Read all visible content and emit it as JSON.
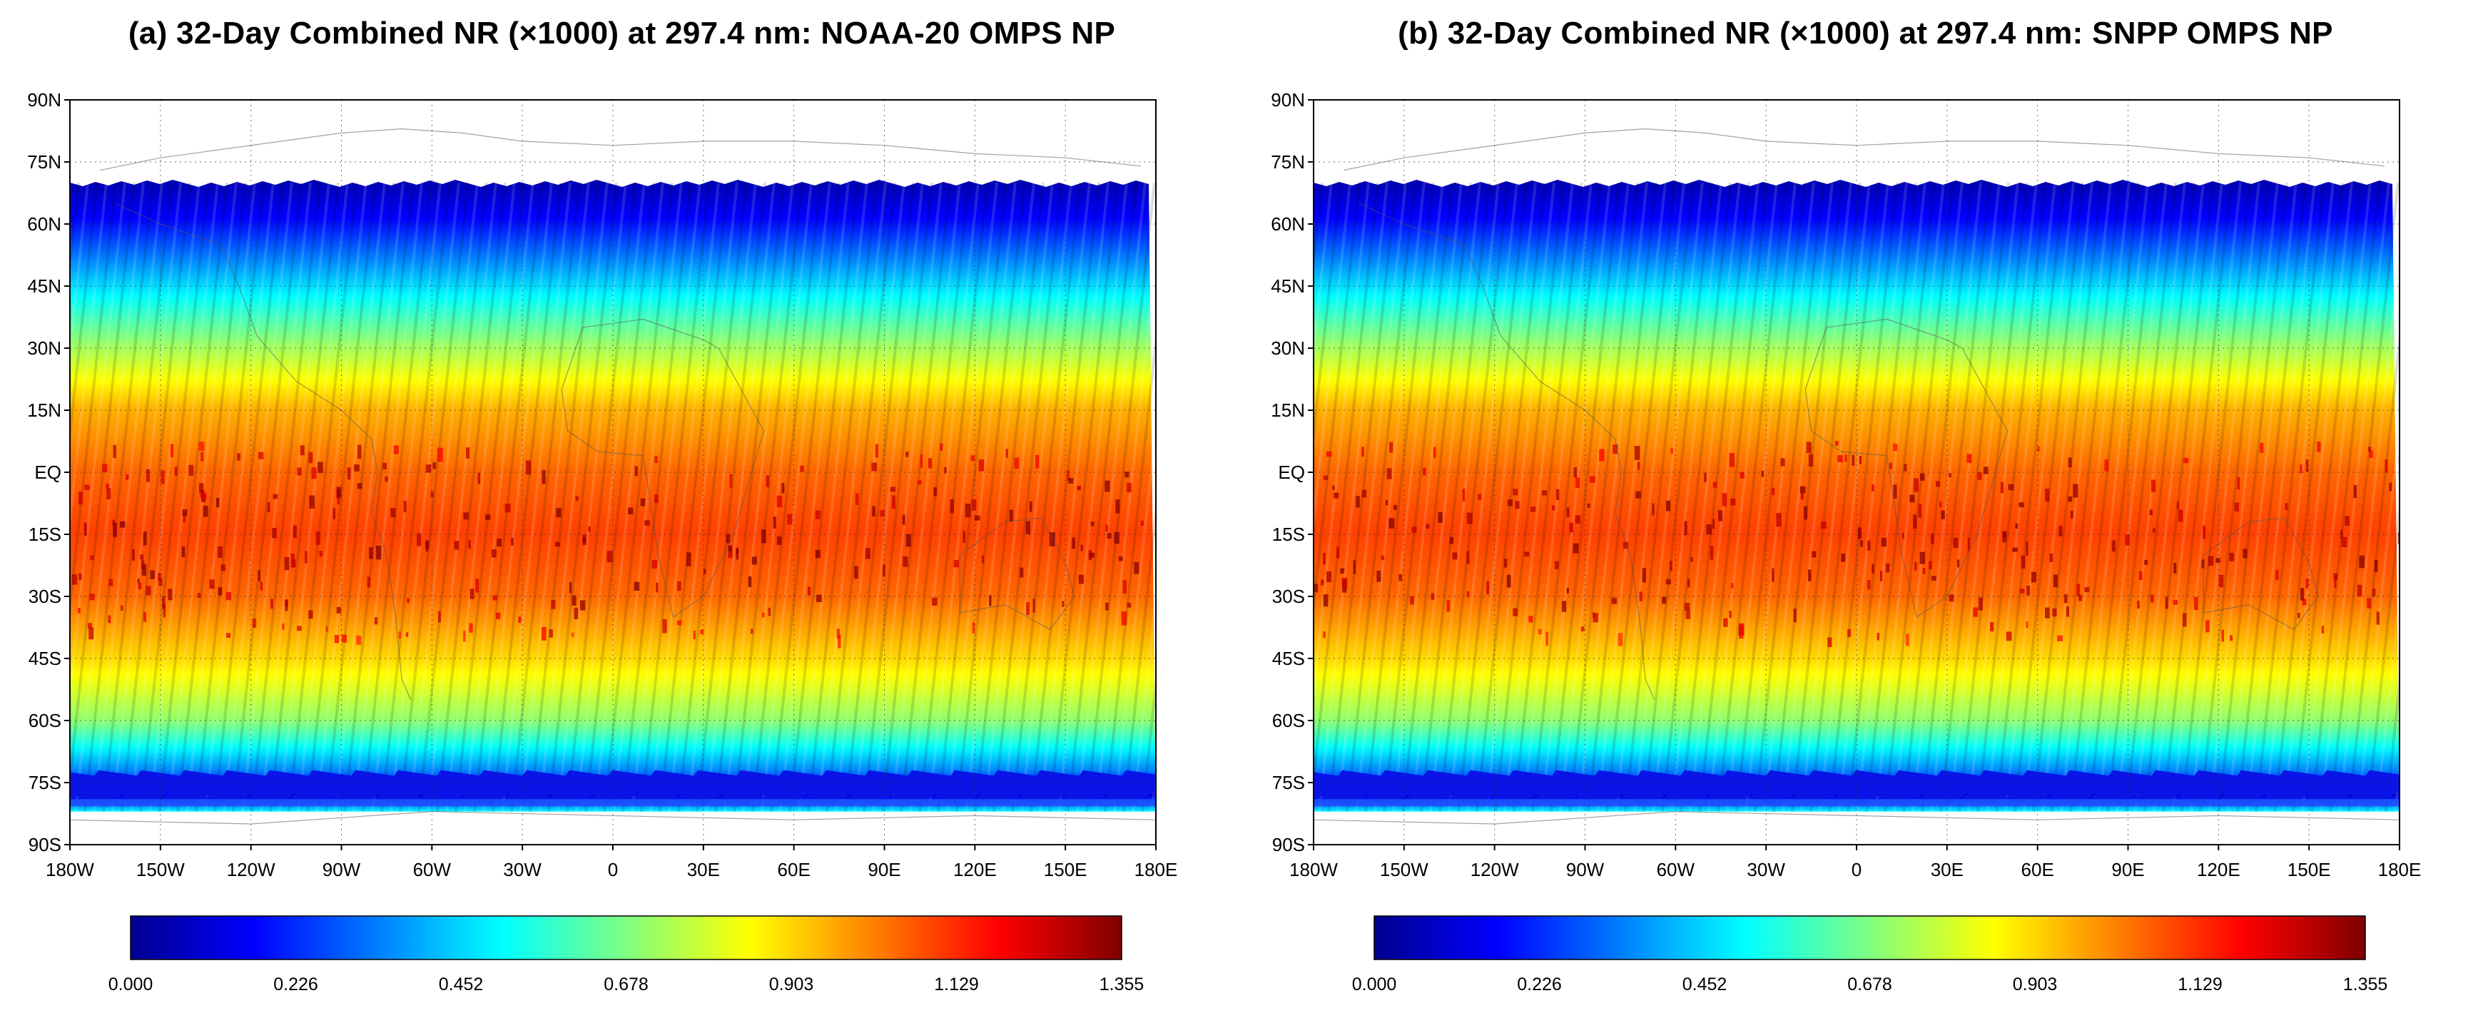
{
  "panels": [
    {
      "id": "a",
      "title": "(a) 32-Day Combined NR (×1000) at 297.4 nm: NOAA-20 OMPS NP",
      "lat_labels": [
        "90N",
        "75N",
        "60N",
        "45N",
        "30N",
        "15N",
        "EQ",
        "15S",
        "30S",
        "45S",
        "60S",
        "75S",
        "90S"
      ],
      "lon_labels": [
        "180W",
        "150W",
        "120W",
        "90W",
        "60W",
        "30W",
        "0",
        "30E",
        "60E",
        "90E",
        "120E",
        "150E",
        "180E"
      ],
      "colorbar_labels": [
        "0.000",
        "0.226",
        "0.452",
        "0.678",
        "0.903",
        "1.129",
        "1.355"
      ]
    },
    {
      "id": "b",
      "title": "(b) 32-Day Combined NR (×1000) at 297.4 nm: SNPP OMPS NP",
      "lat_labels": [
        "90N",
        "75N",
        "60N",
        "45N",
        "30N",
        "15N",
        "EQ",
        "15S",
        "30S",
        "45S",
        "60S",
        "75S",
        "90S"
      ],
      "lon_labels": [
        "180W",
        "150W",
        "120W",
        "90W",
        "60W",
        "30W",
        "0",
        "30E",
        "60E",
        "90E",
        "120E",
        "150E",
        "180E"
      ],
      "colorbar_labels": [
        "0.000",
        "0.226",
        "0.452",
        "0.678",
        "0.903",
        "1.129",
        "1.355"
      ]
    }
  ],
  "colorbar": {
    "min": 0.0,
    "max": 1.355,
    "colormap": "jet",
    "colors": [
      "#00008f",
      "#0000ff",
      "#0080ff",
      "#00ffff",
      "#80ff80",
      "#ffff00",
      "#ff8000",
      "#ff0000",
      "#800000"
    ]
  },
  "chart_data": [
    {
      "type": "heatmap",
      "title": "(a) 32-Day Combined NR (×1000) at 297.4 nm: NOAA-20 OMPS NP",
      "x_ticks": [
        "180W",
        "150W",
        "120W",
        "90W",
        "60W",
        "30W",
        "0",
        "30E",
        "60E",
        "90E",
        "120E",
        "150E",
        "180E"
      ],
      "y_ticks": [
        "90N",
        "75N",
        "60N",
        "45N",
        "30N",
        "15N",
        "EQ",
        "15S",
        "30S",
        "45S",
        "60S",
        "75S",
        "90S"
      ],
      "xlim": [
        -180,
        180
      ],
      "ylim": [
        -90,
        90
      ],
      "colorbar_range": [
        0.0,
        1.355
      ],
      "lat_profile": [
        {
          "lat": 70,
          "value": 0.05
        },
        {
          "lat": 60,
          "value": 0.18
        },
        {
          "lat": 45,
          "value": 0.45
        },
        {
          "lat": 30,
          "value": 0.72
        },
        {
          "lat": 15,
          "value": 0.95
        },
        {
          "lat": 0,
          "value": 1.05
        },
        {
          "lat": -15,
          "value": 1.1
        },
        {
          "lat": -30,
          "value": 1.05
        },
        {
          "lat": -45,
          "value": 0.9
        },
        {
          "lat": -60,
          "value": 0.7
        },
        {
          "lat": -72,
          "value": 0.35
        },
        {
          "lat": -78,
          "value": 0.1
        },
        {
          "lat": -82,
          "value": 0.5
        }
      ]
    },
    {
      "type": "heatmap",
      "title": "(b) 32-Day Combined NR (×1000) at 297.4 nm: SNPP OMPS NP",
      "x_ticks": [
        "180W",
        "150W",
        "120W",
        "90W",
        "60W",
        "30W",
        "0",
        "30E",
        "60E",
        "90E",
        "120E",
        "150E",
        "180E"
      ],
      "y_ticks": [
        "90N",
        "75N",
        "60N",
        "45N",
        "30N",
        "15N",
        "EQ",
        "15S",
        "30S",
        "45S",
        "60S",
        "75S",
        "90S"
      ],
      "xlim": [
        -180,
        180
      ],
      "ylim": [
        -90,
        90
      ],
      "colorbar_range": [
        0.0,
        1.355
      ],
      "lat_profile": [
        {
          "lat": 70,
          "value": 0.05
        },
        {
          "lat": 60,
          "value": 0.18
        },
        {
          "lat": 45,
          "value": 0.45
        },
        {
          "lat": 30,
          "value": 0.72
        },
        {
          "lat": 15,
          "value": 0.95
        },
        {
          "lat": 0,
          "value": 1.05
        },
        {
          "lat": -15,
          "value": 1.1
        },
        {
          "lat": -30,
          "value": 1.05
        },
        {
          "lat": -45,
          "value": 0.9
        },
        {
          "lat": -60,
          "value": 0.7
        },
        {
          "lat": -72,
          "value": 0.35
        },
        {
          "lat": -78,
          "value": 0.1
        },
        {
          "lat": -82,
          "value": 0.5
        }
      ]
    }
  ]
}
